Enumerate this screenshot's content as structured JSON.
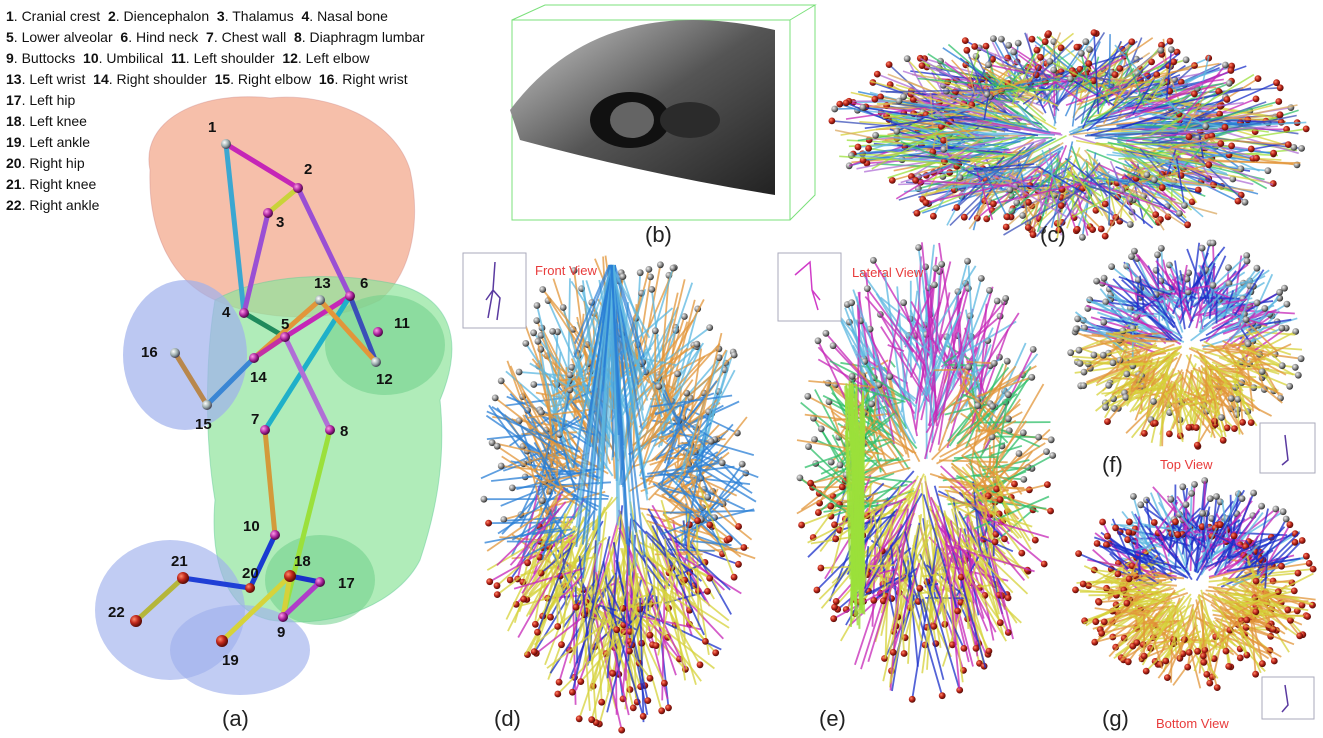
{
  "legend": [
    [
      {
        "n": "1",
        "t": "Cranial crest"
      },
      {
        "n": "2",
        "t": "Diencephalon"
      },
      {
        "n": "3",
        "t": "Thalamus"
      },
      {
        "n": "4",
        "t": "Nasal bone"
      }
    ],
    [
      {
        "n": "5",
        "t": "Lower alveolar"
      },
      {
        "n": "6",
        "t": "Hind neck"
      },
      {
        "n": "7",
        "t": "Chest wall"
      },
      {
        "n": "8",
        "t": "Diaphragm lumbar"
      }
    ],
    [
      {
        "n": "9",
        "t": "Buttocks"
      },
      {
        "n": "10",
        "t": "Umbilical"
      },
      {
        "n": "11",
        "t": "Left shoulder"
      },
      {
        "n": "12",
        "t": "Left elbow"
      }
    ],
    [
      {
        "n": "13",
        "t": "Left wrist"
      },
      {
        "n": "14",
        "t": "Right shoulder"
      },
      {
        "n": "15",
        "t": "Right elbow"
      },
      {
        "n": "16",
        "t": "Right wrist"
      }
    ],
    [
      {
        "n": "17",
        "t": "Left hip"
      }
    ],
    [
      {
        "n": "18",
        "t": "Left knee"
      }
    ],
    [
      {
        "n": "19",
        "t": "Left ankle"
      }
    ],
    [
      {
        "n": "20",
        "t": "Right hip"
      }
    ],
    [
      {
        "n": "21",
        "t": "Right knee"
      }
    ],
    [
      {
        "n": "22",
        "t": "Right ankle"
      }
    ]
  ],
  "panels": {
    "a": "(a)",
    "b": "(b)",
    "c": "(c)",
    "d": "(d)",
    "e": "(e)",
    "f": "(f)",
    "g": "(g)"
  },
  "views": {
    "front": "Front View",
    "lateral": "Lateral View",
    "top": "Top View",
    "bottom": "Bottom View"
  },
  "colors": {
    "head": "#f2a98e",
    "torso": "#8fe39a",
    "limb": "#9fb0ec",
    "node": "#8e2f8c",
    "ball": "#c0281c",
    "grey": "#888888"
  },
  "skeleton": {
    "joints": [
      "1",
      "2",
      "3",
      "4",
      "5",
      "6",
      "7",
      "8",
      "9",
      "10",
      "11",
      "12",
      "13",
      "14",
      "15",
      "16",
      "17",
      "18",
      "19",
      "20",
      "21",
      "22"
    ]
  }
}
